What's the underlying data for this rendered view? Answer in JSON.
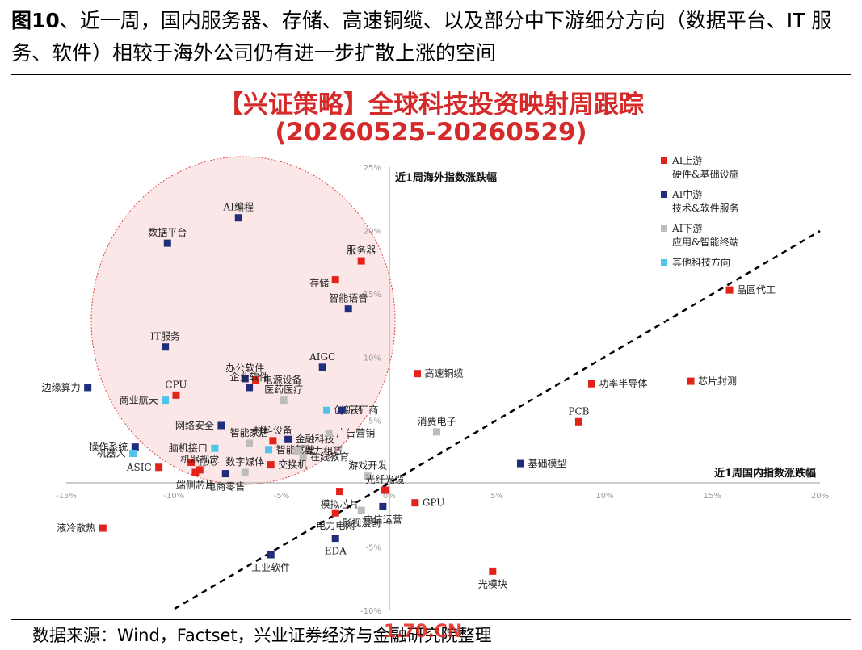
{
  "figure": {
    "number": "图10",
    "title_rest": "、近一周，国内服务器、存储、高速铜缆、以及部分中下游细分方向（数据平台、IT 服务、软件）相较于海外公司仍有进一步扩散上涨的空间",
    "source": "数据来源：Wind，Factset，兴业证券经济与金融研究院整理",
    "watermark": "1.70.CN"
  },
  "chart_data": {
    "type": "scatter",
    "title": "【兴证策略】全球科技投资映射周跟踪",
    "subtitle": "(20260525-20260529)",
    "xlabel": "近1周国内指数涨跌幅",
    "ylabel": "近1周海外指数涨跌幅",
    "xlim": [
      -15,
      20
    ],
    "ylim": [
      -10,
      25
    ],
    "x_ticks": [
      "-15%",
      "-10%",
      "-5%",
      "0%",
      "5%",
      "10%",
      "15%",
      "20%"
    ],
    "y_ticks": [
      "25%",
      "20%",
      "15%",
      "10%",
      "5%",
      "-5%",
      "-10%"
    ],
    "reference_line": "y = x (dashed)",
    "highlight": "pink ellipse around upper-left cluster",
    "legend_position": "top-right",
    "series": [
      {
        "key": "up",
        "name": "AI上游",
        "desc": "硬件&基础设施",
        "color": "#e2231a"
      },
      {
        "key": "mid",
        "name": "AI中游",
        "desc": "技术&软件服务",
        "color": "#1f2d7a"
      },
      {
        "key": "down",
        "name": "AI下游",
        "desc": "应用&智能终端",
        "color": "#bdbdbd"
      },
      {
        "key": "other",
        "name": "其他科技方向",
        "desc": "",
        "color": "#4fc3ea"
      }
    ],
    "points": [
      {
        "label": "AI编程",
        "x": -7.0,
        "y": 21.0,
        "s": "mid"
      },
      {
        "label": "数据平台",
        "x": -10.3,
        "y": 19.0,
        "s": "mid"
      },
      {
        "label": "服务器",
        "x": -1.3,
        "y": 17.6,
        "s": "up"
      },
      {
        "label": "存储",
        "x": -2.5,
        "y": 16.1,
        "s": "up"
      },
      {
        "label": "智能语音",
        "x": -1.9,
        "y": 13.8,
        "s": "mid"
      },
      {
        "label": "晶圆代工",
        "x": 15.8,
        "y": 15.3,
        "s": "up"
      },
      {
        "label": "IT服务",
        "x": -10.4,
        "y": 10.8,
        "s": "mid"
      },
      {
        "label": "AIGC",
        "x": -3.1,
        "y": 9.2,
        "s": "mid"
      },
      {
        "label": "高速铜缆",
        "x": 1.3,
        "y": 8.7,
        "s": "up"
      },
      {
        "label": "边缘算力",
        "x": -14.0,
        "y": 7.6,
        "s": "mid"
      },
      {
        "label": "办公软件",
        "x": -6.7,
        "y": 8.3,
        "s": "mid"
      },
      {
        "label": "电源设备",
        "x": -6.2,
        "y": 8.2,
        "s": "up"
      },
      {
        "label": "企业软件",
        "x": -6.5,
        "y": 7.6,
        "s": "mid"
      },
      {
        "label": "CPU",
        "x": -9.9,
        "y": 7.0,
        "s": "up"
      },
      {
        "label": "商业航天",
        "x": -10.4,
        "y": 6.6,
        "s": "other"
      },
      {
        "label": "医药医疗",
        "x": -4.9,
        "y": 6.6,
        "s": "down"
      },
      {
        "label": "创新药",
        "x": -2.9,
        "y": 5.8,
        "s": "other"
      },
      {
        "label": "云厂商",
        "x": -2.2,
        "y": 5.8,
        "s": "mid"
      },
      {
        "label": "功率半导体",
        "x": 9.4,
        "y": 7.9,
        "s": "up"
      },
      {
        "label": "芯片封测",
        "x": 14.0,
        "y": 8.1,
        "s": "up"
      },
      {
        "label": "PCB",
        "x": 8.8,
        "y": 4.9,
        "s": "up"
      },
      {
        "label": "消费电子",
        "x": 2.2,
        "y": 4.1,
        "s": "down"
      },
      {
        "label": "网络安全",
        "x": -7.8,
        "y": 4.6,
        "s": "mid"
      },
      {
        "label": "脑机接口",
        "x": -8.1,
        "y": 2.8,
        "s": "other"
      },
      {
        "label": "智能家居",
        "x": -6.5,
        "y": 3.2,
        "s": "down"
      },
      {
        "label": "材料设备",
        "x": -5.4,
        "y": 3.4,
        "s": "up"
      },
      {
        "label": "金融科技",
        "x": -4.7,
        "y": 3.5,
        "s": "mid"
      },
      {
        "label": "广告营销",
        "x": -2.8,
        "y": 4.0,
        "s": "down"
      },
      {
        "label": "智能驾驶",
        "x": -5.6,
        "y": 2.7,
        "s": "other"
      },
      {
        "label": "算力租赁",
        "x": -4.3,
        "y": 2.6,
        "s": "down"
      },
      {
        "label": "在线教育",
        "x": -4.0,
        "y": 2.1,
        "s": "down"
      },
      {
        "label": "操作系统",
        "x": -11.8,
        "y": 2.9,
        "s": "mid"
      },
      {
        "label": "机器人",
        "x": -11.9,
        "y": 2.4,
        "s": "other"
      },
      {
        "label": "IDC",
        "x": -9.2,
        "y": 1.7,
        "s": "up"
      },
      {
        "label": "ASIC",
        "x": -10.7,
        "y": 1.3,
        "s": "up"
      },
      {
        "label": "机器视觉",
        "x": -8.8,
        "y": 1.1,
        "s": "up"
      },
      {
        "label": "端侧芯片",
        "x": -9.0,
        "y": 0.9,
        "s": "up"
      },
      {
        "label": "电商零售",
        "x": -7.6,
        "y": 0.8,
        "s": "mid"
      },
      {
        "label": "交换机",
        "x": -5.5,
        "y": 1.5,
        "s": "up"
      },
      {
        "label": "数字媒体",
        "x": -6.7,
        "y": 0.9,
        "s": "down"
      },
      {
        "label": "游戏开发",
        "x": -1.0,
        "y": 0.6,
        "s": "down"
      },
      {
        "label": "基础模型",
        "x": 6.1,
        "y": 1.6,
        "s": "mid"
      },
      {
        "label": "光纤光缆",
        "x": -0.2,
        "y": -0.5,
        "s": "up"
      },
      {
        "label": "模拟芯片",
        "x": -2.3,
        "y": -0.6,
        "s": "up"
      },
      {
        "label": "液冷散热",
        "x": -13.3,
        "y": -3.5,
        "s": "up"
      },
      {
        "label": "GPU",
        "x": 1.2,
        "y": -1.5,
        "s": "up"
      },
      {
        "label": "电信运营",
        "x": -0.3,
        "y": -1.8,
        "s": "mid"
      },
      {
        "label": "影视漫剧",
        "x": -1.3,
        "y": -2.1,
        "s": "down"
      },
      {
        "label": "电力电网",
        "x": -2.5,
        "y": -2.3,
        "s": "up"
      },
      {
        "label": "EDA",
        "x": -2.5,
        "y": -4.3,
        "s": "mid"
      },
      {
        "label": "工业软件",
        "x": -5.5,
        "y": -5.6,
        "s": "mid"
      },
      {
        "label": "光模块",
        "x": 4.8,
        "y": -6.9,
        "s": "up"
      }
    ]
  }
}
